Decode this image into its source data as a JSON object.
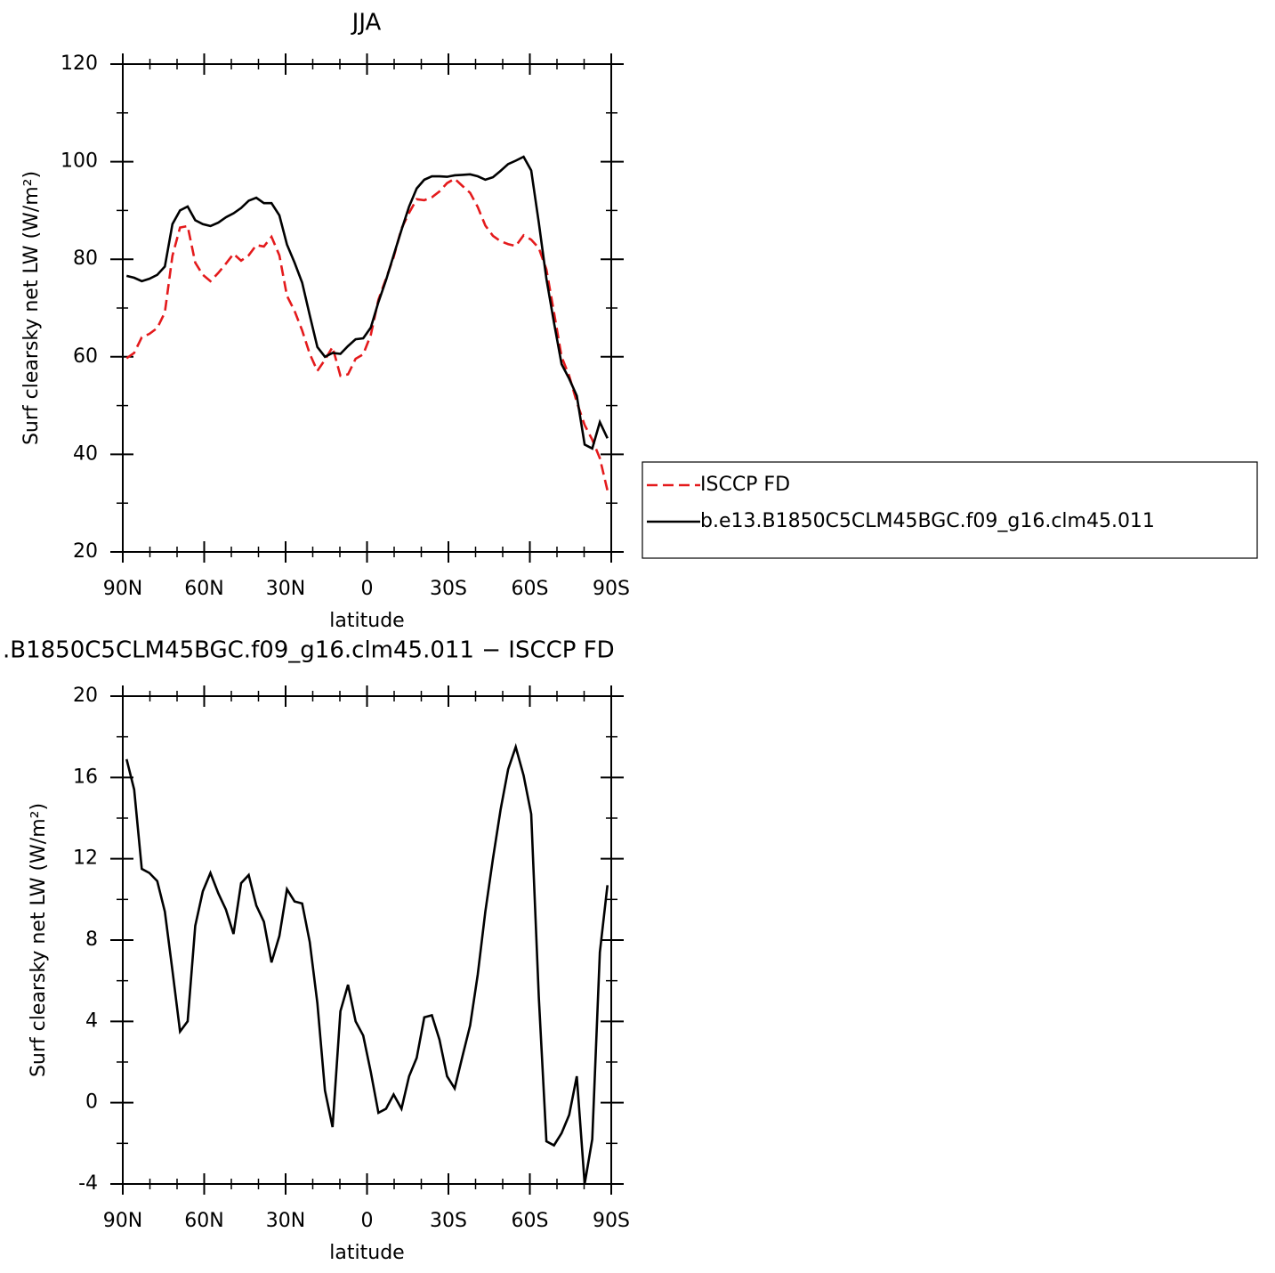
{
  "chart_data": [
    {
      "type": "line",
      "title": "JJA",
      "xlabel": "latitude",
      "ylabel": "Surf clearsky net LW (W/m²)",
      "xlim": [
        90,
        -90
      ],
      "ylim": [
        20,
        120
      ],
      "xticks": [
        {
          "value": 90,
          "label": "90N"
        },
        {
          "value": 60,
          "label": "60N"
        },
        {
          "value": 30,
          "label": "30N"
        },
        0,
        {
          "value": -30,
          "label": "30S"
        },
        {
          "value": -60,
          "label": "60S"
        },
        {
          "value": -90,
          "label": "90S"
        }
      ],
      "xminorticks": [
        80,
        70,
        50,
        40,
        20,
        10,
        -10,
        -20,
        -40,
        -50,
        -70,
        -80
      ],
      "yticks": [
        20,
        40,
        60,
        80,
        100,
        120
      ],
      "yminorticks": [
        30,
        50,
        70,
        90,
        110
      ],
      "legend": "right",
      "x": [
        88.6,
        85.8,
        83.0,
        80.2,
        77.3,
        74.5,
        71.7,
        68.9,
        66.1,
        63.3,
        60.5,
        57.7,
        54.8,
        52.0,
        49.2,
        46.4,
        43.6,
        40.8,
        38.0,
        35.2,
        32.3,
        29.5,
        26.7,
        23.9,
        21.1,
        18.3,
        15.5,
        12.7,
        9.8,
        7.0,
        4.2,
        1.4,
        -1.4,
        -4.2,
        -7.0,
        -9.8,
        -12.7,
        -15.5,
        -18.3,
        -21.1,
        -23.9,
        -26.7,
        -29.5,
        -32.3,
        -35.2,
        -38.0,
        -40.8,
        -43.6,
        -46.4,
        -49.2,
        -52.0,
        -54.8,
        -57.7,
        -60.5,
        -63.3,
        -66.1,
        -68.9,
        -71.7,
        -74.5,
        -77.3,
        -80.2,
        -83.0,
        -85.8,
        -88.6
      ],
      "series": [
        {
          "name": "ISCCP FD",
          "color": "#e41a1c",
          "style": "dashed",
          "values": [
            59.7,
            60.8,
            64.0,
            64.7,
            65.9,
            69.1,
            80.7,
            86.5,
            86.8,
            79.3,
            76.8,
            75.5,
            77.2,
            79.1,
            81.1,
            79.7,
            80.8,
            82.9,
            82.6,
            84.6,
            80.8,
            72.5,
            69.4,
            65.4,
            60.6,
            57.1,
            59.4,
            62.0,
            56.1,
            56.4,
            59.6,
            60.5,
            64.5,
            71.7,
            76.0,
            80.4,
            86.3,
            89.5,
            92.3,
            92.1,
            92.7,
            93.9,
            95.6,
            96.5,
            95.0,
            93.6,
            90.7,
            86.9,
            84.8,
            83.7,
            83.1,
            82.7,
            84.9,
            84.0,
            82.3,
            77.9,
            69.1,
            60.0,
            56.1,
            50.7,
            46.0,
            43.0,
            39.2,
            32.6
          ]
        },
        {
          "name": "b.e13.B1850C5CLM45BGC.f09_g16.clm45.011",
          "color": "#000000",
          "style": "solid",
          "values": [
            76.6,
            76.2,
            75.5,
            76.0,
            76.8,
            78.5,
            87.2,
            90.0,
            90.8,
            88.0,
            87.2,
            86.8,
            87.5,
            88.6,
            89.4,
            90.5,
            92.0,
            92.6,
            91.5,
            91.5,
            89.0,
            83.0,
            79.3,
            75.2,
            68.5,
            62.0,
            60.0,
            60.8,
            60.6,
            62.2,
            63.6,
            63.8,
            66.0,
            71.2,
            75.7,
            80.8,
            86.0,
            90.8,
            94.5,
            96.3,
            97.0,
            97.0,
            96.9,
            97.2,
            97.3,
            97.4,
            97.0,
            96.3,
            96.8,
            98.1,
            99.5,
            100.2,
            101.0,
            98.2,
            87.5,
            76.0,
            67.0,
            58.5,
            55.5,
            52.0,
            42.0,
            41.2,
            46.6,
            43.3
          ]
        }
      ]
    },
    {
      "type": "line",
      "title": ".B1850C5CLM45BGC.f09_g16.clm45.011 − ISCCP FD",
      "xlabel": "latitude",
      "ylabel": "Surf clearsky net LW (W/m²)",
      "xlim": [
        90,
        -90
      ],
      "ylim": [
        -4,
        20
      ],
      "xticks": [
        {
          "value": 90,
          "label": "90N"
        },
        {
          "value": 60,
          "label": "60N"
        },
        {
          "value": 30,
          "label": "30N"
        },
        0,
        {
          "value": -30,
          "label": "30S"
        },
        {
          "value": -60,
          "label": "60S"
        },
        {
          "value": -90,
          "label": "90S"
        }
      ],
      "xminorticks": [
        80,
        70,
        50,
        40,
        20,
        10,
        -10,
        -20,
        -40,
        -50,
        -70,
        -80
      ],
      "yticks": [
        -4,
        0,
        4,
        8,
        12,
        16,
        20
      ],
      "yminorticks": [
        -2,
        2,
        6,
        10,
        14,
        18
      ],
      "x": [
        88.6,
        85.8,
        83.0,
        80.2,
        77.3,
        74.5,
        71.7,
        68.9,
        66.1,
        63.3,
        60.5,
        57.7,
        54.8,
        52.0,
        49.2,
        46.4,
        43.6,
        40.8,
        38.0,
        35.2,
        32.3,
        29.5,
        26.7,
        23.9,
        21.1,
        18.3,
        15.5,
        12.7,
        9.8,
        7.0,
        4.2,
        1.4,
        -1.4,
        -4.2,
        -7.0,
        -9.8,
        -12.7,
        -15.5,
        -18.3,
        -21.1,
        -23.9,
        -26.7,
        -29.5,
        -32.3,
        -35.2,
        -38.0,
        -40.8,
        -43.6,
        -46.4,
        -49.2,
        -52.0,
        -54.8,
        -57.7,
        -60.5,
        -63.3,
        -66.1,
        -68.9,
        -71.7,
        -74.5,
        -77.3,
        -80.2,
        -83.0,
        -85.8,
        -88.6
      ],
      "series": [
        {
          "color": "#000000",
          "style": "solid",
          "values": [
            16.9,
            15.4,
            11.5,
            11.3,
            10.9,
            9.4,
            6.5,
            3.5,
            4.0,
            8.7,
            10.4,
            11.3,
            10.3,
            9.5,
            8.3,
            10.8,
            11.2,
            9.7,
            8.9,
            6.9,
            8.2,
            10.5,
            9.9,
            9.8,
            7.9,
            4.9,
            0.6,
            -1.2,
            4.5,
            5.8,
            4.0,
            3.3,
            1.5,
            -0.5,
            -0.3,
            0.4,
            -0.3,
            1.3,
            2.2,
            4.2,
            4.3,
            3.1,
            1.3,
            0.7,
            2.3,
            3.8,
            6.3,
            9.4,
            12.0,
            14.4,
            16.4,
            17.5,
            16.1,
            14.2,
            5.2,
            -1.9,
            -2.1,
            -1.5,
            -0.6,
            1.3,
            -4.0,
            -1.8,
            7.4,
            10.7
          ]
        }
      ]
    }
  ]
}
